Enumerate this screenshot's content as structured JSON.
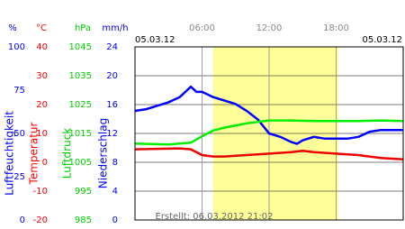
{
  "chart_data": {
    "type": "line",
    "date_left": "05.03.12",
    "date_right": "05.03.12",
    "footer": "Erstellt: 06.03.2012 21:02",
    "xlim": [
      0,
      24
    ],
    "xticks": [
      {
        "value": 6,
        "label": "06:00"
      },
      {
        "value": 12,
        "label": "12:00"
      },
      {
        "value": 18,
        "label": "18:00"
      }
    ],
    "highlight": [
      7,
      18.2
    ],
    "highlight_color": "#ffff99",
    "grid": true,
    "axes": [
      {
        "unit": "%",
        "title": "Luftfeuchtigkeit",
        "color": "#0000ff",
        "lim": [
          0,
          100
        ],
        "ticks": [
          0,
          25,
          50,
          75,
          100
        ]
      },
      {
        "unit": "°C",
        "title": "Temperatur",
        "color": "#ff0000",
        "lim": [
          -20,
          40
        ],
        "ticks": [
          -20,
          -10,
          0,
          10,
          20,
          30,
          40
        ]
      },
      {
        "unit": "hPa",
        "title": "Luftdruck",
        "color": "#00cc00",
        "lim": [
          985,
          1045
        ],
        "ticks": [
          985,
          995,
          1005,
          1015,
          1025,
          1035,
          1045
        ]
      },
      {
        "unit": "mm/h",
        "title": "Niederschlag",
        "color": "#0000ff",
        "lim": [
          0,
          24
        ],
        "ticks": [
          0,
          4,
          8,
          12,
          16,
          20,
          24
        ]
      }
    ],
    "series": [
      {
        "axis": 0,
        "color": "#0000ff",
        "x": [
          0,
          1,
          2,
          3,
          4,
          5,
          5.5,
          6,
          7,
          8,
          9,
          10,
          11,
          12,
          13,
          14,
          14.5,
          15,
          16,
          17,
          18,
          19,
          20,
          21,
          22,
          24
        ],
        "values": [
          63,
          64,
          66,
          68,
          71,
          77,
          74,
          74,
          71,
          69,
          67,
          63,
          58,
          50,
          48,
          45,
          44,
          46,
          48,
          47,
          47,
          47,
          48,
          51,
          52,
          52
        ]
      },
      {
        "axis": 2,
        "color": "#00ee00",
        "x": [
          0,
          3,
          5,
          6,
          7,
          8,
          10,
          12,
          14,
          16,
          18,
          20,
          22,
          24
        ],
        "values": [
          1011.5,
          1011.2,
          1011.8,
          1014,
          1016,
          1017,
          1018.5,
          1019.5,
          1019.5,
          1019.3,
          1019.3,
          1019.3,
          1019.5,
          1019.3
        ]
      },
      {
        "axis": 1,
        "color": "#ee0000",
        "x": [
          0,
          4,
          5,
          6,
          7,
          8,
          10,
          12,
          14,
          15,
          16,
          18,
          20,
          22,
          24
        ],
        "values": [
          4.5,
          4.8,
          4.5,
          2.5,
          2,
          2,
          2.5,
          3,
          3.5,
          4,
          3.5,
          3,
          2.5,
          1.5,
          1
        ]
      }
    ]
  }
}
